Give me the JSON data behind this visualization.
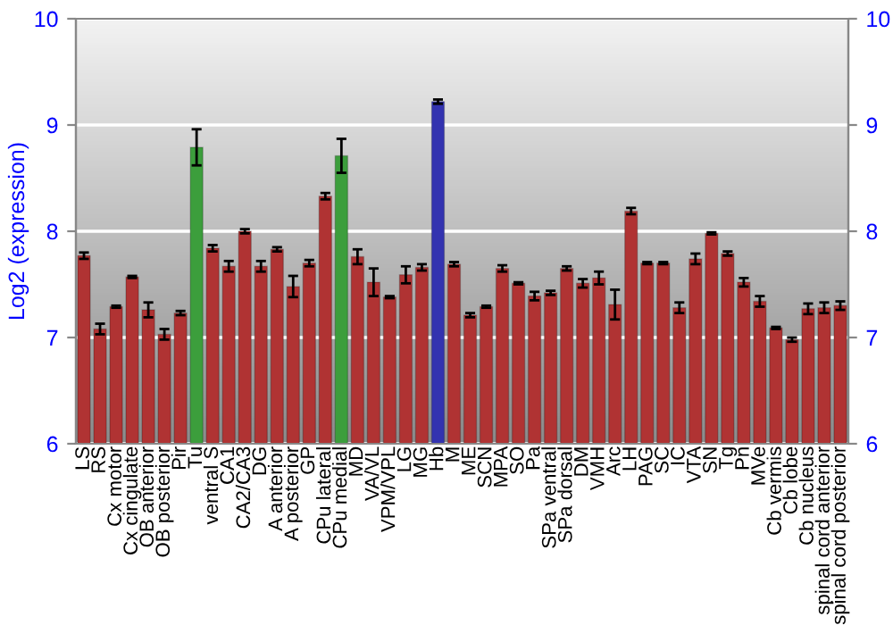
{
  "chart_data": {
    "type": "bar",
    "ylabel": "Log2 (expression)",
    "categories": [
      "LS",
      "RS",
      "Cx motor",
      "Cx cingulate",
      "OB anterior",
      "OB posterior",
      "Pir",
      "Tu",
      "ventral S",
      "CA1",
      "CA2/CA3",
      "DG",
      "A anterior",
      "A posterior",
      "GP",
      "CPu lateral",
      "CPu medial",
      "MD",
      "VA/VL",
      "VPM/VPL",
      "LG",
      "MG",
      "Hb",
      "M",
      "ME",
      "SCN",
      "MPA",
      "SO",
      "Pa",
      "SPa ventral",
      "SPa dorsal",
      "DM",
      "VMH",
      "Arc",
      "LH",
      "PAG",
      "SC",
      "IC",
      "VTA",
      "SN",
      "Tg",
      "Pn",
      "MVe",
      "Cb vermis",
      "Cb lobe",
      "Cb nucleus",
      "spinal cord anterior",
      "spinal cord posterior"
    ],
    "values": [
      7.77,
      7.08,
      7.29,
      7.57,
      7.26,
      7.03,
      7.23,
      8.79,
      7.84,
      7.67,
      8.0,
      7.67,
      7.83,
      7.48,
      7.7,
      8.33,
      8.71,
      7.76,
      7.52,
      7.38,
      7.59,
      7.66,
      9.22,
      7.69,
      7.21,
      7.29,
      7.65,
      7.51,
      7.39,
      7.42,
      7.65,
      7.51,
      7.56,
      7.31,
      8.19,
      7.7,
      7.7,
      7.28,
      7.74,
      7.98,
      7.79,
      7.52,
      7.34,
      7.09,
      6.98,
      7.27,
      7.28,
      7.3
    ],
    "errors": [
      0.03,
      0.05,
      0.01,
      0.01,
      0.07,
      0.05,
      0.02,
      0.17,
      0.03,
      0.05,
      0.02,
      0.05,
      0.02,
      0.1,
      0.03,
      0.03,
      0.16,
      0.07,
      0.13,
      0.01,
      0.08,
      0.03,
      0.02,
      0.02,
      0.02,
      0.01,
      0.03,
      0.01,
      0.04,
      0.02,
      0.02,
      0.04,
      0.06,
      0.14,
      0.03,
      0.01,
      0.01,
      0.05,
      0.05,
      0.01,
      0.02,
      0.04,
      0.05,
      0.01,
      0.02,
      0.05,
      0.05,
      0.04
    ],
    "colors": [
      "#b03333",
      "#b03333",
      "#b03333",
      "#b03333",
      "#b03333",
      "#b03333",
      "#b03333",
      "#3c9e3c",
      "#b03333",
      "#b03333",
      "#b03333",
      "#b03333",
      "#b03333",
      "#b03333",
      "#b03333",
      "#b03333",
      "#3c9e3c",
      "#b03333",
      "#b03333",
      "#b03333",
      "#b03333",
      "#b03333",
      "#3333b0",
      "#b03333",
      "#b03333",
      "#b03333",
      "#b03333",
      "#b03333",
      "#b03333",
      "#b03333",
      "#b03333",
      "#b03333",
      "#b03333",
      "#b03333",
      "#b03333",
      "#b03333",
      "#b03333",
      "#b03333",
      "#b03333",
      "#b03333",
      "#b03333",
      "#b03333",
      "#b03333",
      "#b03333",
      "#b03333",
      "#b03333",
      "#b03333",
      "#b03333"
    ],
    "ylim": [
      6,
      10
    ],
    "yticks": [
      6,
      7,
      8,
      9,
      10
    ],
    "y2lim": [
      6,
      10
    ],
    "y2ticks": [
      6,
      7,
      8,
      9,
      10
    ],
    "grid": "y"
  }
}
